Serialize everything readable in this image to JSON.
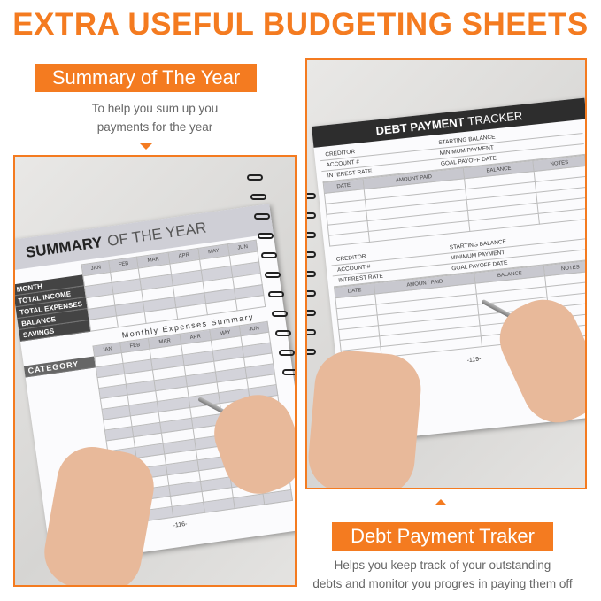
{
  "title": "EXTRA USEFUL BUDGETING SHEETS",
  "colors": {
    "accent": "#f47b20"
  },
  "left": {
    "label": "Summary of The Year",
    "desc_lines": [
      "To help you sum up you",
      "payments for the year"
    ],
    "sheet": {
      "title_bold": "SUMMARY",
      "title_light": "OF THE YEAR",
      "months": [
        "JAN",
        "FEB",
        "MAR",
        "APR",
        "MAY",
        "JUN"
      ],
      "rows": [
        "MONTH",
        "TOTAL INCOME",
        "TOTAL EXPENSES",
        "BALANCE",
        "SAVINGS"
      ],
      "expenses_title": "Monthly Expenses Summary",
      "category_label": "CATEGORY",
      "page_number": "-116-"
    }
  },
  "right": {
    "label": "Debt Payment Traker",
    "desc_lines": [
      "Helps you keep track of your outstanding",
      "debts and monitor you progres in paying them off"
    ],
    "sheet": {
      "title_bold": "DEBT PAYMENT",
      "title_light": "TRACKER",
      "left_fields": [
        "CREDITOR",
        "ACCOUNT #",
        "INTEREST RATE"
      ],
      "right_fields": [
        "STARTING BALANCE",
        "MINIMUM PAYMENT",
        "GOAL PAYOFF DATE"
      ],
      "columns": [
        "DATE",
        "AMOUNT PAID",
        "BALANCE",
        "NOTES"
      ],
      "page_number": "-119-"
    }
  }
}
